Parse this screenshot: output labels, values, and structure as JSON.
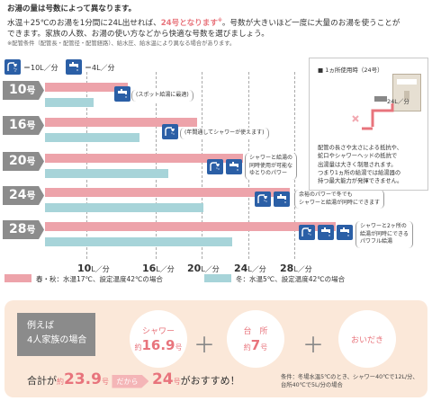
{
  "header": {
    "title": "お湯の量は号数によって異なります。",
    "line1_a": "水温＋25℃のお湯を1分間に24L出せれば、",
    "line1_hl": "24号となります",
    "line1_sup": "※",
    "line1_b": "。号数が大きいほど一度に大量のお湯を使うことが",
    "line2": "できます。家族の人数、お湯の使い方などから快適な号数を選びましょう。",
    "note": "※配管条件（配管長・配管径・配管経路）、給水圧、給水温により異なる場合があります。"
  },
  "legend": {
    "shower": "＝10L／分",
    "faucet": "＝4L／分"
  },
  "rows": [
    {
      "label": "10",
      "unit": "号",
      "bubble": [
        "(スポット給湯に最適)"
      ]
    },
    {
      "label": "16",
      "unit": "号",
      "bubble": [
        "(年間通してシャワーが使えます)"
      ]
    },
    {
      "label": "20",
      "unit": "号",
      "bubble": [
        "シャワーと給湯の",
        "同時使用が可能な",
        "ゆとりのパワー"
      ]
    },
    {
      "label": "24",
      "unit": "号",
      "bubble": [
        "余裕のパワーで冬でも",
        "シャワーと給湯が同時にできます"
      ]
    },
    {
      "label": "28",
      "unit": "号",
      "bubble": [
        "シャワーと2ヶ所の",
        "給湯が同時にできる",
        "パワフル給湯"
      ]
    }
  ],
  "chart_data": {
    "type": "bar",
    "categories": [
      "10号",
      "16号",
      "20号",
      "24号",
      "28号"
    ],
    "series": [
      {
        "name": "春・秋：水温17℃、設定温度42℃の場合",
        "values": [
          10,
          16,
          20,
          24,
          28
        ]
      },
      {
        "name": "冬：水温5℃、設定温度42℃の場合",
        "values": [
          7,
          11,
          13.5,
          16.5,
          19
        ]
      }
    ],
    "x_ticks": [
      "10",
      "16",
      "20",
      "24",
      "28"
    ],
    "x_unit": "L／分",
    "xlim": [
      4,
      29
    ]
  },
  "panel": {
    "title": "■ 1ヵ所使用時（24号）",
    "flow": "24L／分",
    "body": [
      "配管の長さや太さによる抵抗や、",
      "蛇口やシャワーヘッドの抵抗で",
      "出湯量は大きく制限されます。",
      "つまり1ヵ所の給湯では給湯器の",
      "持つ最大能力が発揮できません。"
    ]
  },
  "legend2": {
    "pink": "春・秋：水温17℃、設定温度42℃の場合",
    "blue": "冬：水温5℃、設定温度42℃の場合",
    "pink_color": "#eda3aa",
    "blue_color": "#a7d4d9"
  },
  "example": {
    "box_line1": "例えば",
    "box_line2": "4人家族の場合",
    "c1_label": "シャワー",
    "c1_pre": "約",
    "c1_num": "16.9",
    "c1_unit": "号",
    "c2_label": "台　所",
    "c2_pre": "約",
    "c2_num": "7",
    "c2_unit": "号",
    "c3_label": "おいだき",
    "plus": "＋",
    "sum_pre": "合計が",
    "sum_approx": "約",
    "sum_num": "23.9",
    "sum_unit": "号",
    "sum_tag": "だから",
    "sum_rec": "24",
    "sum_rec_unit": "号",
    "sum_tail": "がおすすめ！",
    "cond1": "条件：冬場水温5℃のとき、シャワー40℃で12L/分、",
    "cond2": "台所40℃で5L/分の場合"
  }
}
